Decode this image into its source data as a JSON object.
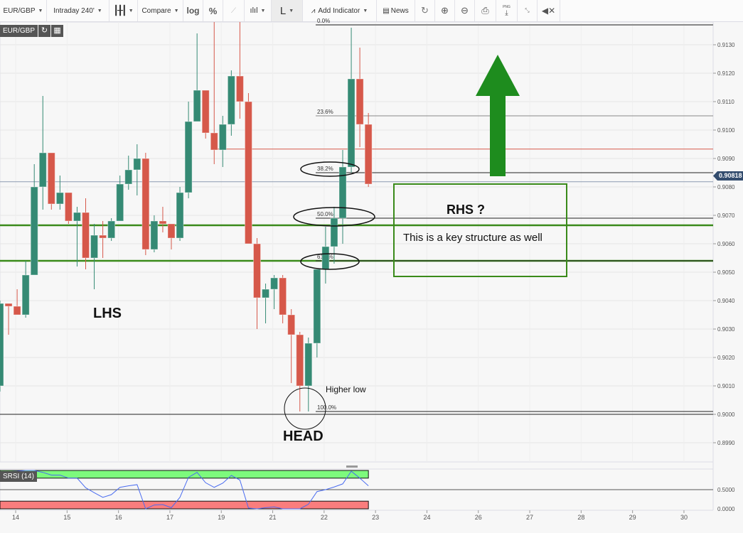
{
  "toolbar": {
    "symbol": "EUR/GBP",
    "interval": "Intraday 240'",
    "compare": "Compare",
    "log": "log",
    "percent": "%",
    "line_type": "L",
    "add_indicator": "Add Indicator",
    "news": "News",
    "png": "PNG"
  },
  "legend": {
    "symbol": "EUR/GBP"
  },
  "rsi_label": "SRSI (14)",
  "last_price": "0.90818",
  "annotations": {
    "lhs": "LHS",
    "head": "HEAD",
    "higher_low": "Higher low",
    "rhs": "RHS ?",
    "key_structure": "This is a key structure as well"
  },
  "colors": {
    "up": "#358a74",
    "down": "#d6584a",
    "annotation": "#3a8a1a",
    "arrow": "#1e8c1e",
    "rsi_line": "#4a6cf0",
    "rsi_overbought": "#7dfa7d",
    "rsi_oversold": "#fa7d7d"
  },
  "chart_data": {
    "type": "candlestick",
    "symbol": "EUR/GBP",
    "interval": "240 min",
    "ylim": [
      0.8985,
      0.914
    ],
    "y_ticks": [
      "0.8990",
      "0.9000",
      "0.9010",
      "0.9020",
      "0.9030",
      "0.9040",
      "0.9050",
      "0.9060",
      "0.9070",
      "0.9080",
      "0.9090",
      "0.9100",
      "0.9110",
      "0.9120",
      "0.9130"
    ],
    "x_ticks": [
      "14",
      "15",
      "16",
      "17",
      "19",
      "21",
      "22",
      "23",
      "24",
      "26",
      "27",
      "28",
      "29",
      "30"
    ],
    "candles_ohlc": [
      [
        0.901,
        0.904,
        0.9008,
        0.9039
      ],
      [
        0.9039,
        0.9039,
        0.9028,
        0.9038
      ],
      [
        0.9038,
        0.9044,
        0.9035,
        0.9035
      ],
      [
        0.9035,
        0.9054,
        0.9034,
        0.9049
      ],
      [
        0.9049,
        0.9088,
        0.9049,
        0.908
      ],
      [
        0.908,
        0.9112,
        0.9072,
        0.9092
      ],
      [
        0.9092,
        0.9092,
        0.9072,
        0.9074
      ],
      [
        0.9074,
        0.9084,
        0.9072,
        0.9078
      ],
      [
        0.9078,
        0.9078,
        0.9067,
        0.9068
      ],
      [
        0.9068,
        0.9073,
        0.9052,
        0.9071
      ],
      [
        0.9071,
        0.9076,
        0.9051,
        0.9055
      ],
      [
        0.9055,
        0.9067,
        0.9044,
        0.9063
      ],
      [
        0.9063,
        0.9068,
        0.9055,
        0.9062
      ],
      [
        0.9062,
        0.9069,
        0.9061,
        0.9068
      ],
      [
        0.9068,
        0.9084,
        0.9068,
        0.9081
      ],
      [
        0.9081,
        0.9091,
        0.9079,
        0.9086
      ],
      [
        0.9086,
        0.9095,
        0.9077,
        0.909
      ],
      [
        0.909,
        0.9092,
        0.9056,
        0.9058
      ],
      [
        0.9058,
        0.907,
        0.9057,
        0.9068
      ],
      [
        0.9068,
        0.9073,
        0.9064,
        0.9067
      ],
      [
        0.9067,
        0.9067,
        0.9058,
        0.9062
      ],
      [
        0.9062,
        0.908,
        0.9061,
        0.9078
      ],
      [
        0.9078,
        0.911,
        0.9076,
        0.9103
      ],
      [
        0.9103,
        0.9134,
        0.9103,
        0.9114
      ],
      [
        0.9114,
        0.9114,
        0.9097,
        0.9099
      ],
      [
        0.9099,
        0.9138,
        0.9088,
        0.9093
      ],
      [
        0.9093,
        0.9105,
        0.9087,
        0.9102
      ],
      [
        0.9102,
        0.9121,
        0.9098,
        0.9119
      ],
      [
        0.9119,
        0.9138,
        0.9104,
        0.911
      ],
      [
        0.911,
        0.9113,
        0.906,
        0.906
      ],
      [
        0.906,
        0.9062,
        0.903,
        0.9041
      ],
      [
        0.9041,
        0.9046,
        0.9032,
        0.9044
      ],
      [
        0.9044,
        0.9049,
        0.9037,
        0.9048
      ],
      [
        0.9048,
        0.9049,
        0.9032,
        0.9035
      ],
      [
        0.9035,
        0.9037,
        0.9011,
        0.9028
      ],
      [
        0.9028,
        0.9029,
        0.9001,
        0.901
      ],
      [
        0.901,
        0.9027,
        0.9001,
        0.9025
      ],
      [
        0.9025,
        0.9051,
        0.902,
        0.9051
      ],
      [
        0.9051,
        0.9066,
        0.9046,
        0.9059
      ],
      [
        0.9059,
        0.9073,
        0.9053,
        0.9069
      ],
      [
        0.9069,
        0.9093,
        0.906,
        0.9087
      ],
      [
        0.9087,
        0.9136,
        0.9085,
        0.9118
      ],
      [
        0.9118,
        0.9129,
        0.9094,
        0.9102
      ],
      [
        0.9102,
        0.9106,
        0.908,
        0.9081
      ]
    ],
    "fibonacci": [
      {
        "label": "0.0%",
        "price": 0.9137
      },
      {
        "label": "23.6%",
        "price": 0.9105
      },
      {
        "label": "38.2%",
        "price": 0.9085
      },
      {
        "label": "50.0%",
        "price": 0.9069
      },
      {
        "label": "61.8%",
        "price": 0.9054
      },
      {
        "label": "100.0%",
        "price": 0.9001
      }
    ],
    "horizontal_lines": [
      {
        "price": 0.90665,
        "color": "#3a8a1a"
      },
      {
        "price": 0.9054,
        "color": "#3a8a1a"
      },
      {
        "price": 0.9,
        "color": "#222222"
      },
      {
        "price": 0.90933,
        "color": "#d6584a"
      }
    ],
    "stoch_rsi": {
      "label": "SRSI (14)",
      "y_ticks": [
        "0.0000",
        "0.5000"
      ],
      "overbought": 0.8,
      "oversold": 0.2,
      "values": [
        0.95,
        0.97,
        0.98,
        1.0,
        1.0,
        0.95,
        0.88,
        0.88,
        0.8,
        0.8,
        0.55,
        0.42,
        0.3,
        0.37,
        0.56,
        0.6,
        0.63,
        0.0,
        0.1,
        0.11,
        0.03,
        0.3,
        0.82,
        0.95,
        0.68,
        0.56,
        0.67,
        0.87,
        0.75,
        0.02,
        0.0,
        0.03,
        0.05,
        0.0,
        0.0,
        0.0,
        0.12,
        0.45,
        0.5,
        0.57,
        0.65,
        0.98,
        0.8,
        0.6
      ]
    }
  }
}
